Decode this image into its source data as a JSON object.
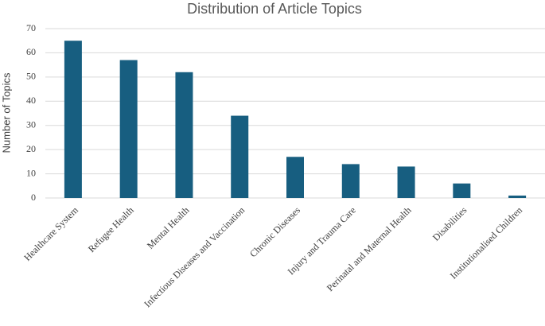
{
  "chart_data": {
    "type": "bar",
    "title": "Distribution of Article Topics",
    "y_label": "Number of Topics",
    "categories": [
      "Healthcare System",
      "Refugee Health",
      "Mental Health",
      "Infectious Diseases and Vaccination",
      "Chronic Diseases",
      "Injury and Trauma Care",
      "Perinatal and Maternal Health",
      "Disabilities",
      "Institutionalised Children"
    ],
    "values": [
      65,
      57,
      52,
      34,
      17,
      14,
      13,
      6,
      1
    ],
    "color": "#175e80",
    "ylim": [
      0,
      70
    ],
    "yticks": [
      0,
      10,
      20,
      30,
      40,
      50,
      60,
      70
    ],
    "grid": true
  }
}
